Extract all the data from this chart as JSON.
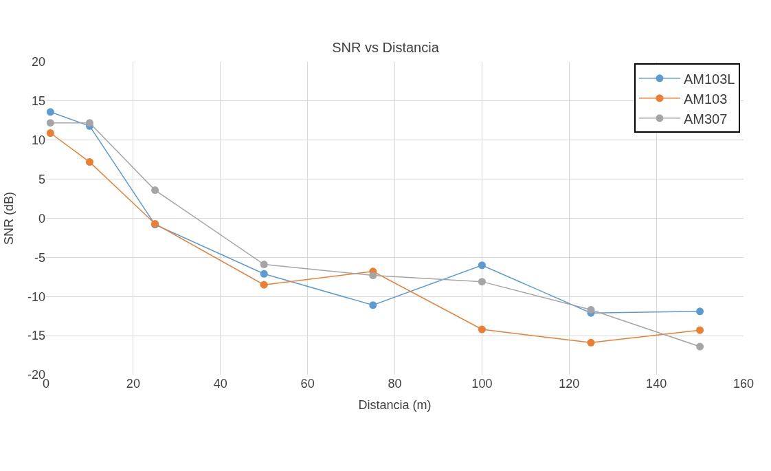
{
  "chart_data": {
    "type": "line",
    "title": "SNR vs Distancia",
    "xlabel": "Distancia (m)",
    "ylabel": "SNR (dB)",
    "x": [
      1,
      10,
      25,
      50,
      75,
      100,
      125,
      150
    ],
    "series": [
      {
        "name": "AM103L",
        "color": "#5b9bd5",
        "values": [
          13.6,
          11.8,
          -0.8,
          -7.1,
          -11.1,
          -6.0,
          -12.1,
          -11.9
        ]
      },
      {
        "name": "AM103",
        "color": "#ed7d31",
        "values": [
          10.9,
          7.2,
          -0.7,
          -8.5,
          -6.8,
          -14.2,
          -15.9,
          -14.3
        ]
      },
      {
        "name": "AM307",
        "color": "#a5a5a5",
        "values": [
          12.2,
          12.2,
          3.6,
          -5.9,
          -7.3,
          -8.1,
          -11.7,
          -16.4
        ]
      }
    ],
    "xlim": [
      0,
      160
    ],
    "xticks": [
      0,
      20,
      40,
      60,
      80,
      100,
      120,
      140,
      160
    ],
    "ylim": [
      -20,
      20
    ],
    "yticks": [
      -20,
      -15,
      -10,
      -5,
      0,
      5,
      10,
      15,
      20
    ],
    "grid": true,
    "legend": "top right",
    "marker": "circle",
    "line_style": "solid"
  }
}
